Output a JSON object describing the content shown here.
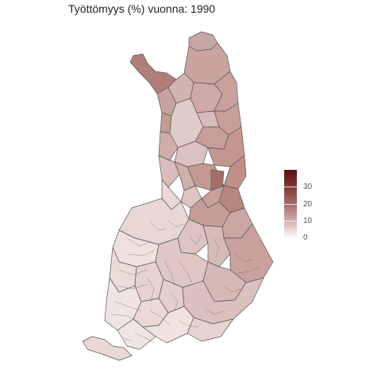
{
  "title": "Työttömyys (%) vuonna: 1990",
  "colors": {
    "scale_high": "#5a0f0f",
    "scale_low": "#ffffff",
    "border": "#555555"
  },
  "legend": {
    "ticks": [
      "30",
      "20",
      "10",
      "0"
    ],
    "max": 40
  }
}
